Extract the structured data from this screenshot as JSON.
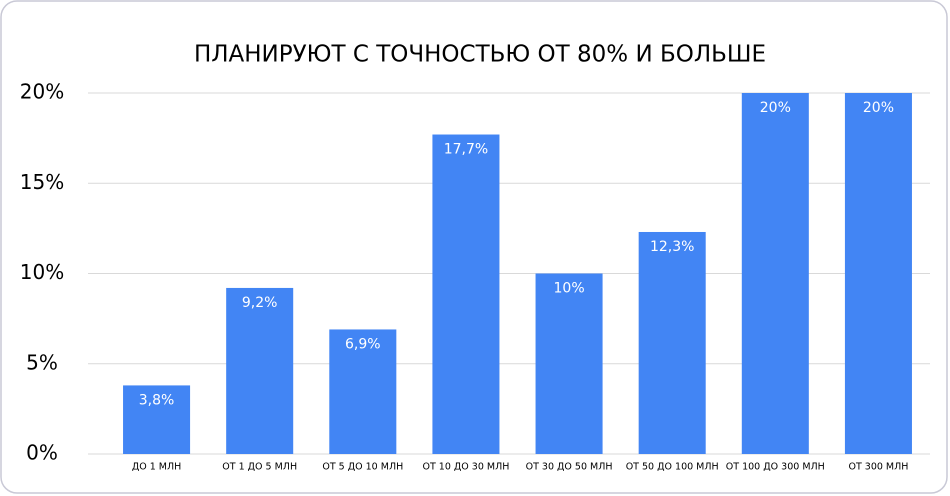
{
  "chart_data": {
    "type": "bar",
    "title": "ПЛАНИРУЮТ С ТОЧНОСТЬЮ ОТ 80% И БОЛЬШЕ",
    "categories": [
      "ДО 1 МЛН",
      "ОТ 1 ДО 5 МЛН",
      "ОТ 5 ДО 10 МЛН",
      "ОТ 10 ДО 30 МЛН",
      "ОТ 30 ДО 50 МЛН",
      "ОТ 50 ДО 100 МЛН",
      "ОТ 100 ДО 300 МЛН",
      "ОТ 300 МЛН"
    ],
    "values": [
      3.8,
      9.2,
      6.9,
      17.7,
      10,
      12.3,
      20,
      20
    ],
    "value_labels": [
      "3,8%",
      "9,2%",
      "6,9%",
      "17,7%",
      "10%",
      "12,3%",
      "20%",
      "20%"
    ],
    "color": "#4285f4",
    "ylim": [
      0,
      20
    ],
    "yticks": [
      {
        "value": 0,
        "label": "0%"
      },
      {
        "value": 5,
        "label": "5%"
      },
      {
        "value": 10,
        "label": "10%"
      },
      {
        "value": 15,
        "label": "15%"
      },
      {
        "value": 20,
        "label": "20%"
      }
    ],
    "grid": true
  }
}
